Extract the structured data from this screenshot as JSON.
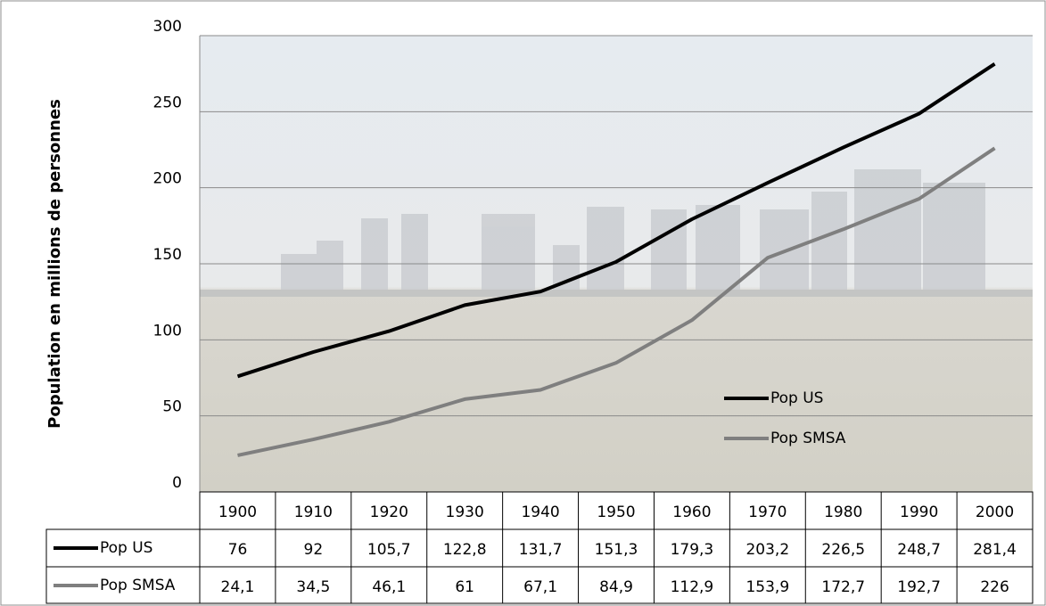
{
  "chart_data": {
    "type": "line",
    "y_label": "Population en millions de personnes",
    "categories": [
      "1900",
      "1910",
      "1920",
      "1930",
      "1940",
      "1950",
      "1960",
      "1970",
      "1980",
      "1990",
      "2000"
    ],
    "series": [
      {
        "name": "Pop US",
        "color": "#000000",
        "values": [
          76,
          92,
          105.7,
          122.8,
          131.7,
          151.3,
          179.3,
          203.2,
          226.5,
          248.7,
          281.4
        ],
        "value_labels": [
          "76",
          "92",
          "105,7",
          "122,8",
          "131,7",
          "151,3",
          "179,3",
          "203,2",
          "226,5",
          "248,7",
          "281,4"
        ]
      },
      {
        "name": "Pop SMSA",
        "color": "#7f7f7f",
        "values": [
          24.1,
          34.5,
          46.1,
          61,
          67.1,
          84.9,
          112.9,
          153.9,
          172.7,
          192.7,
          226
        ],
        "value_labels": [
          "24,1",
          "34,5",
          "46,1",
          "61",
          "67,1",
          "84,9",
          "112,9",
          "153,9",
          "172,7",
          "192,7",
          "226"
        ]
      }
    ],
    "ylim": [
      0,
      300
    ],
    "yticks": [
      0,
      50,
      100,
      150,
      200,
      250,
      300
    ],
    "grid": true
  }
}
